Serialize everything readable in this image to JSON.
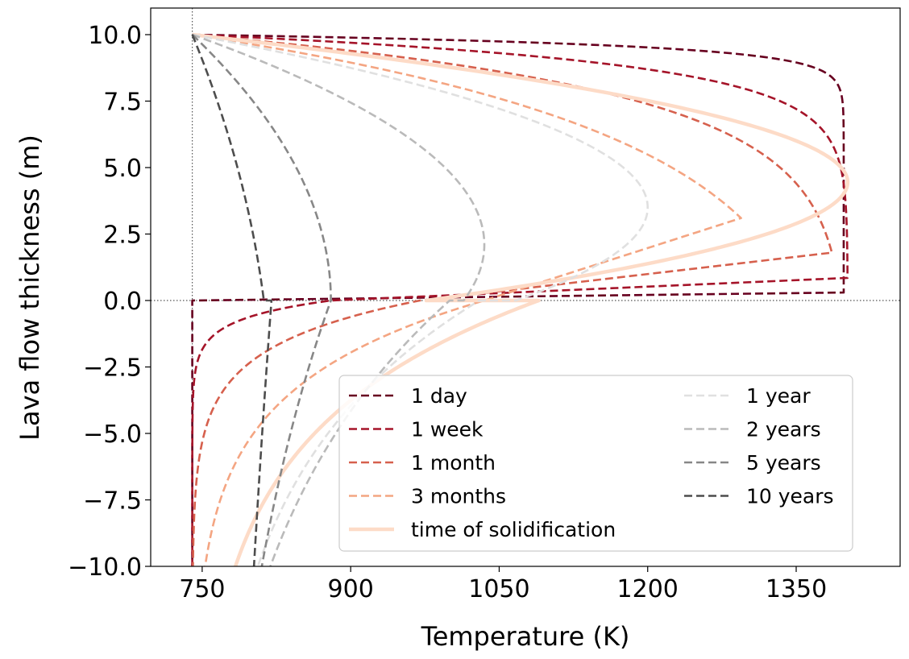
{
  "chart_data": {
    "type": "line",
    "xlabel": "Temperature (K)",
    "ylabel": "Lava flow thickness (m)",
    "xlim": [
      698,
      1455
    ],
    "ylim": [
      -10,
      11
    ],
    "xticks": [
      750,
      900,
      1050,
      1200,
      1350
    ],
    "xtick_labels": [
      "750",
      "900",
      "1050",
      "1200",
      "1350"
    ],
    "yticks": [
      -10,
      -7.5,
      -5,
      -2.5,
      0,
      2.5,
      5,
      7.5,
      10
    ],
    "ytick_labels": [
      "−10.0",
      "−7.5",
      "−5.0",
      "−2.5",
      "0.0",
      "2.5",
      "5.0",
      "7.5",
      "10.0"
    ],
    "reference_lines": {
      "x": 740,
      "y": 0,
      "style": "dotted"
    },
    "grid": false,
    "legend": {
      "placement": "lower-right",
      "columns": 2
    },
    "series": [
      {
        "name": "1 day",
        "color": "#67001f",
        "style": "dashed",
        "upper": {
          "surface_temp": 740,
          "top": 10,
          "t_max": 1398,
          "drop_depth": 0.4,
          "bottom": 0.3
        },
        "lower": {
          "t_contact": 740,
          "t_far": 740,
          "decay_depth": 0.15
        }
      },
      {
        "name": "1 week",
        "color": "#a51429",
        "style": "dashed",
        "upper": {
          "surface_temp": 740,
          "top": 10,
          "t_max": 1402,
          "drop_depth": 1.1,
          "bottom": 0.85
        },
        "lower": {
          "t_contact": 880,
          "t_far": 740,
          "decay_depth": 0.7
        }
      },
      {
        "name": "1 month",
        "color": "#d6604d",
        "style": "dashed",
        "upper": {
          "surface_temp": 740,
          "top": 10,
          "t_max": 1402,
          "drop_depth": 2.2,
          "bottom": 1.8
        },
        "lower": {
          "t_contact": 970,
          "t_far": 740,
          "decay_depth": 1.7
        }
      },
      {
        "name": "3 months",
        "color": "#f4a582",
        "style": "dashed",
        "upper": {
          "surface_temp": 740,
          "top": 10,
          "t_max": 1402,
          "drop_depth": 3.8,
          "bottom": 3.1
        },
        "lower": {
          "t_contact": 1035,
          "t_far": 740,
          "decay_depth": 3.2
        }
      },
      {
        "name": "time of solidification",
        "color": "#fddbc7",
        "style": "solid",
        "upper": {
          "surface_temp": 740,
          "top": 10,
          "t_max": 1402,
          "peak_depth": 4.45
        },
        "lower": {
          "t_contact": 1090,
          "t_far": 740,
          "decay_depth": 4.8
        }
      },
      {
        "name": "1 year",
        "color": "#e0e0e0",
        "style": "dashed",
        "upper": {
          "surface_temp": 740,
          "top": 10,
          "t_max": 1200,
          "peak_depth": 3.5
        },
        "lower": {
          "t_contact": 1030,
          "t_far": 745,
          "decay_depth": 6.5
        }
      },
      {
        "name": "2 years",
        "color": "#bababa",
        "style": "dashed",
        "upper": {
          "surface_temp": 740,
          "top": 10,
          "t_max": 1035,
          "peak_depth": 2.1
        },
        "lower": {
          "t_contact": 1000,
          "t_far": 730,
          "decay_depth": 9.0
        }
      },
      {
        "name": "5 years",
        "color": "#878787",
        "style": "dashed",
        "upper": {
          "surface_temp": 740,
          "top": 10,
          "t_max": 880,
          "peak_depth": 0.0
        },
        "lower": {
          "t_contact": 880,
          "t_far": 740,
          "decay_depth": 14.5
        }
      },
      {
        "name": "10 years",
        "color": "#4d4d4d",
        "style": "dashed",
        "upper": {
          "surface_temp": 740,
          "top": 10,
          "t_max": 820,
          "peak_depth": -4.5
        },
        "lower": {
          "t_contact": 820,
          "t_far": 740,
          "decay_depth": 40
        }
      }
    ]
  }
}
